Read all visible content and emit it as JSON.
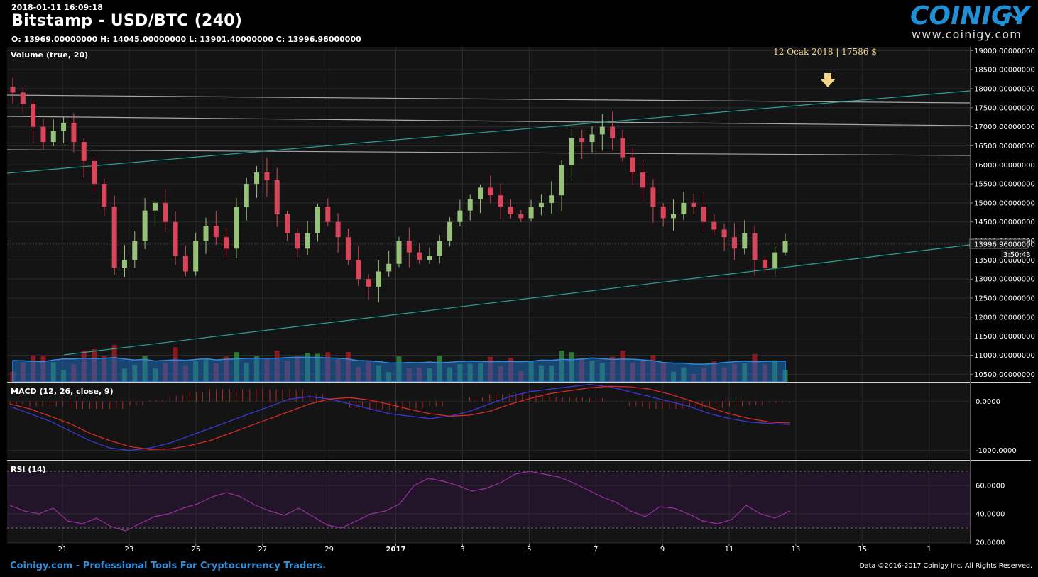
{
  "header": {
    "timestamp": "2018-01-11 16:09:18",
    "title": "Bitstamp - USD/BTC (240)",
    "ohlc": "O: 13969.00000000 H: 14045.00000000 L: 13901.40000000 C: 13996.96000000"
  },
  "logo": {
    "brand": "COINIGY",
    "url": "www.coinigy.com"
  },
  "footer": {
    "tagline": "Coinigy.com - Professional Tools For Cryptocurrency Traders.",
    "copyright": "Data ©2016-2017 Coinigy Inc. All Rights Reserved."
  },
  "colors": {
    "background": "#000000",
    "panel": "#141414",
    "bull": "#97c27a",
    "bear": "#d9455a",
    "trend": "#29a394",
    "level": "#a7a7a7",
    "macd": "#3b37d8",
    "signal": "#d42a2a",
    "rsi": "#9a2f9e",
    "volume_ma": "#1f7fd0",
    "annotation": "#f1d58a"
  },
  "chart_data": [
    {
      "type": "candlestick",
      "panel": "price",
      "indicator_label": "Volume (true, 20)",
      "annotation": "12 Ocak 2018 | 17586 $",
      "annotation_icon": "arrow-down-icon",
      "last_price_label": "13996.96000000",
      "countdown_label": "3:50:43",
      "y_ticks": [
        "10500.00000000",
        "11000.00000000",
        "11500.00000000",
        "12000.00000000",
        "12500.00000000",
        "13000.00000000",
        "13500.00000000",
        "14000.00000000",
        "14500.00000000",
        "15000.00000000",
        "15500.00000000",
        "16000.00000000",
        "16500.00000000",
        "17000.00000000",
        "17500.00000000",
        "18000.00000000",
        "18500.00000000",
        "19000.00000000"
      ],
      "ylim": [
        10300,
        19100
      ],
      "x_ticks": [
        "21",
        "23",
        "25",
        "27",
        "29",
        "2017",
        "3",
        "5",
        "7",
        "9",
        "11",
        "13",
        "15",
        "1"
      ],
      "close_series": [
        17900,
        17600,
        17000,
        16600,
        16900,
        17100,
        16600,
        16100,
        15500,
        14900,
        13300,
        13500,
        14000,
        14800,
        15000,
        14500,
        13600,
        13200,
        14000,
        14400,
        14100,
        13800,
        14900,
        15500,
        15800,
        15600,
        14700,
        14200,
        13800,
        14200,
        14900,
        14500,
        14100,
        13500,
        13000,
        12800,
        13200,
        13400,
        14000,
        13700,
        13500,
        13600,
        14000,
        14500,
        14800,
        15100,
        15400,
        15200,
        14900,
        14700,
        14600,
        14900,
        15000,
        15200,
        16000,
        16700,
        16600,
        16800,
        17000,
        16700,
        16200,
        15800,
        15400,
        14900,
        14600,
        14700,
        15000,
        14900,
        14500,
        14300,
        14100,
        13800,
        14200,
        13500,
        13300,
        13700,
        14000
      ],
      "volume_ma_note": "20-period volume moving average (area)"
    },
    {
      "type": "line",
      "panel": "macd",
      "indicator_label": "MACD (12, 26, close, 9)",
      "y_ticks": [
        "0.0000",
        "-1000.0000"
      ],
      "ylim": [
        -1150,
        300
      ],
      "series": [
        {
          "values": [
            -100,
            -250,
            -400,
            -600,
            -800,
            -950,
            -1000,
            -950,
            -850,
            -700,
            -550,
            -400,
            -250,
            -100,
            50,
            100,
            50,
            -50,
            -150,
            -250,
            -300,
            -350,
            -300,
            -200,
            -50,
            100,
            200,
            250,
            300,
            350,
            300,
            200,
            100,
            0,
            -100,
            -250,
            -350,
            -420,
            -450,
            -470
          ]
        },
        {
          "values": [
            -50,
            -150,
            -300,
            -450,
            -650,
            -800,
            -920,
            -980,
            -970,
            -900,
            -800,
            -650,
            -500,
            -350,
            -200,
            -50,
            50,
            80,
            30,
            -60,
            -160,
            -250,
            -300,
            -280,
            -200,
            -60,
            60,
            160,
            220,
            280,
            310,
            300,
            250,
            150,
            20,
            -120,
            -250,
            -350,
            -420,
            -440
          ]
        }
      ],
      "histogram": [
        -50,
        -100,
        -100,
        -150,
        -150,
        -150,
        -80,
        30,
        120,
        200,
        250,
        250,
        250,
        250,
        250,
        150,
        0,
        -130,
        -180,
        -190,
        -140,
        -100,
        0,
        80,
        150,
        160,
        140,
        90,
        80,
        70,
        -10,
        -100,
        -150,
        -150,
        -120,
        -130,
        -100,
        -70,
        -30,
        -30
      ]
    },
    {
      "type": "line",
      "panel": "rsi",
      "indicator_label": "RSI (14)",
      "y_ticks": [
        "60.0000",
        "40.0000",
        "20.0000"
      ],
      "ylim": [
        20,
        75
      ],
      "bands": [
        30,
        70
      ],
      "series": [
        {
          "values": [
            46,
            42,
            40,
            44,
            35,
            33,
            37,
            31,
            28,
            33,
            38,
            40,
            44,
            47,
            52,
            55,
            52,
            46,
            42,
            39,
            44,
            38,
            32,
            30,
            35,
            40,
            42,
            47,
            60,
            65,
            63,
            60,
            56,
            58,
            62,
            68,
            70,
            68,
            66,
            62,
            57,
            52,
            48,
            42,
            38,
            45,
            44,
            40,
            35,
            33,
            36,
            46,
            40,
            37,
            42
          ]
        }
      ]
    }
  ]
}
